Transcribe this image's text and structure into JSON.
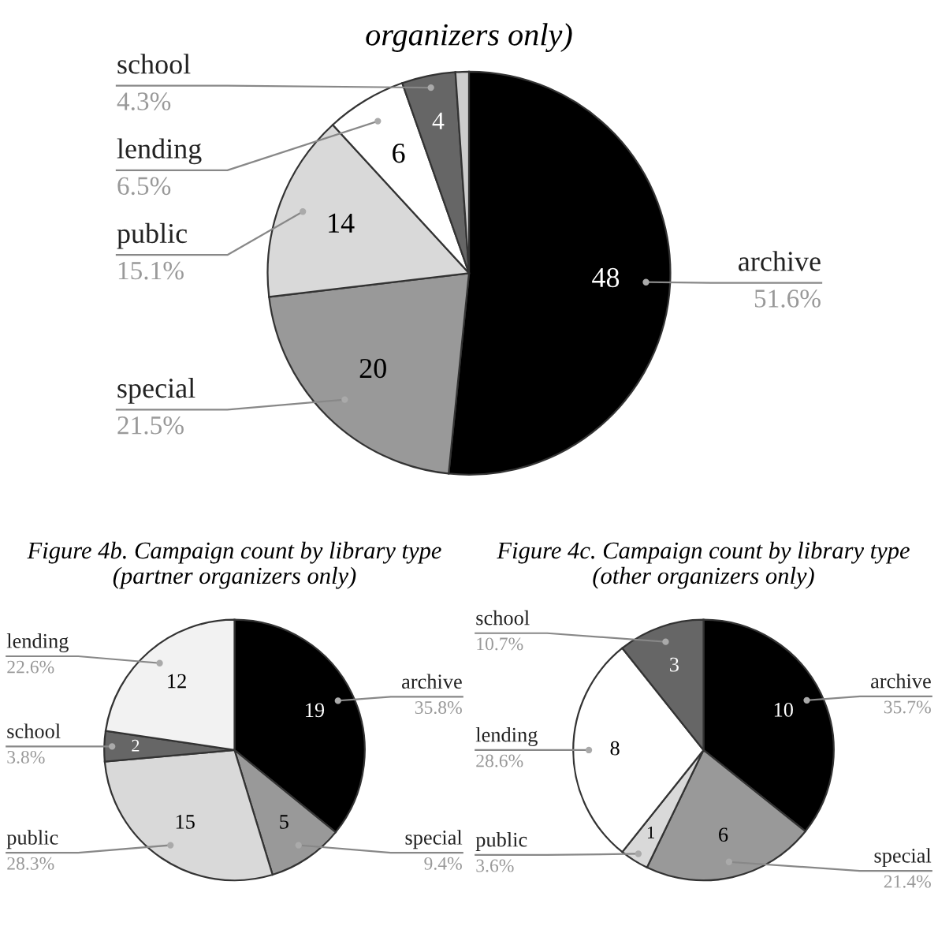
{
  "chart_data": [
    {
      "type": "pie",
      "title": "organizers only)",
      "categories": [
        "archive",
        "special",
        "public",
        "lending",
        "school",
        null
      ],
      "values": [
        48,
        20,
        14,
        6,
        4,
        1
      ],
      "colors": [
        "#000000",
        "#999999",
        "#d9d9d9",
        "#ffffff",
        "#666666",
        "#cccccc"
      ],
      "annotations": [
        "51.6%",
        "21.5%",
        "15.1%",
        "6.5%",
        "4.3%"
      ],
      "value_labels": [
        "48",
        "20",
        "14",
        "6",
        "4",
        null
      ]
    },
    {
      "type": "pie",
      "title": "Figure 4b. Campaign count by library type (partner organizers only)",
      "categories": [
        "archive",
        "special",
        "public",
        "school",
        "lending"
      ],
      "values": [
        19,
        5,
        15,
        2,
        12
      ],
      "colors": [
        "#000000",
        "#999999",
        "#d9d9d9",
        "#666666",
        "#f2f2f2"
      ],
      "annotations": [
        "35.8%",
        "9.4%",
        "28.3%",
        "3.8%",
        "22.6%"
      ],
      "data_labels": true
    },
    {
      "type": "pie",
      "title": "Figure 4c. Campaign count by library type (other organizers only)",
      "categories": [
        "archive",
        "special",
        "public",
        "lending",
        "school"
      ],
      "values": [
        10,
        6,
        1,
        8,
        3
      ],
      "colors": [
        "#000000",
        "#999999",
        "#d9d9d9",
        "#ffffff",
        "#666666"
      ],
      "annotations": [
        "35.7%",
        "21.4%",
        "3.6%",
        "28.6%",
        "10.7%"
      ],
      "data_labels": true
    }
  ]
}
